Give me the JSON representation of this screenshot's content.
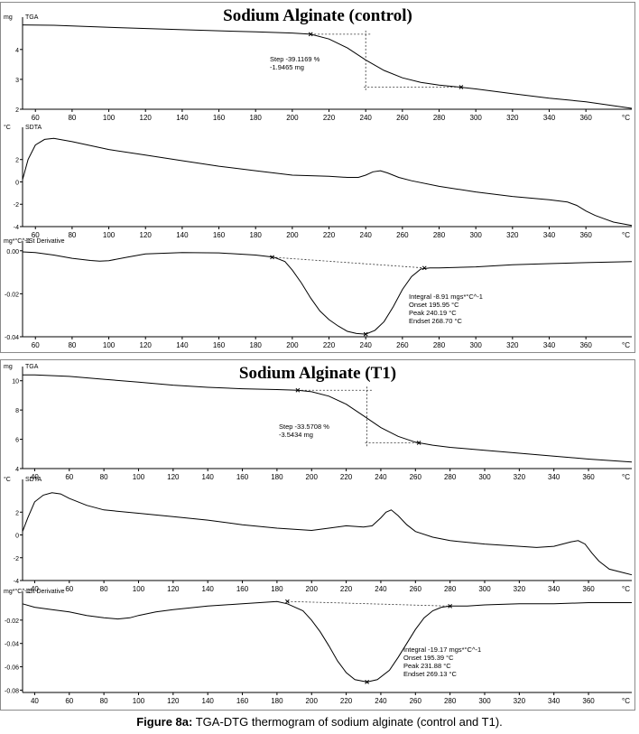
{
  "figure_caption": {
    "label": "Figure 8a:",
    "text": " TGA-DTG thermogram of sodium alginate (control and T1)."
  },
  "chart_data": [
    {
      "type": "line",
      "title": "Sodium Alginate (control)",
      "x_unit_label": "°C",
      "plots": [
        {
          "name": "TGA",
          "unit": "mg",
          "ylim": [
            2.0,
            4.9
          ],
          "xlim": [
            53,
            385
          ],
          "yticks": [
            2,
            3,
            4
          ],
          "ytick_labels": [
            "2",
            "3",
            "4"
          ],
          "xticks": [
            60,
            80,
            100,
            120,
            140,
            160,
            180,
            200,
            220,
            240,
            260,
            280,
            300,
            320,
            340,
            360
          ],
          "series": [
            {
              "x": [
                53,
                70,
                100,
                140,
                180,
                200,
                210,
                220,
                230,
                240,
                250,
                260,
                270,
                280,
                290,
                300,
                320,
                340,
                360,
                385
              ],
              "y": [
                4.82,
                4.81,
                4.74,
                4.66,
                4.59,
                4.55,
                4.51,
                4.35,
                4.05,
                3.65,
                3.3,
                3.05,
                2.9,
                2.81,
                2.75,
                2.68,
                2.52,
                2.37,
                2.25,
                2.03
              ]
            }
          ],
          "markers": [
            {
              "x": 210,
              "y": 4.51
            },
            {
              "x": 292,
              "y": 2.74
            }
          ],
          "step": {
            "x_from": 210,
            "x_to": 292,
            "x_mid": 240,
            "y_from": 4.51,
            "y_to": 2.74
          },
          "annotation": [
            "Step   -39.1169 %",
            "          -1.9465 mg"
          ]
        },
        {
          "name": "SDTA",
          "unit": "°C",
          "ylim": [
            -4,
            4.4
          ],
          "xlim": [
            53,
            385
          ],
          "yticks": [
            -4,
            -2,
            0,
            2
          ],
          "ytick_labels": [
            "-4",
            "-2",
            "0",
            "2"
          ],
          "xticks": [
            60,
            80,
            100,
            120,
            140,
            160,
            180,
            200,
            220,
            240,
            260,
            280,
            300,
            320,
            340,
            360
          ],
          "series": [
            {
              "x": [
                53,
                56,
                60,
                65,
                70,
                80,
                100,
                120,
                140,
                160,
                180,
                200,
                220,
                230,
                236,
                240,
                244,
                248,
                252,
                258,
                265,
                280,
                300,
                320,
                340,
                350,
                355,
                360,
                365,
                370,
                375,
                385
              ],
              "y": [
                0.2,
                2.0,
                3.3,
                3.8,
                3.9,
                3.6,
                2.9,
                2.4,
                1.9,
                1.4,
                1.0,
                0.6,
                0.5,
                0.4,
                0.4,
                0.6,
                0.9,
                1.0,
                0.8,
                0.4,
                0.1,
                -0.4,
                -0.9,
                -1.3,
                -1.6,
                -1.8,
                -2.1,
                -2.6,
                -3.0,
                -3.3,
                -3.6,
                -3.9
              ]
            }
          ]
        },
        {
          "name": "1St Derivative",
          "unit": "mg*°C^-1",
          "ylim": [
            -0.04,
            0.002
          ],
          "xlim": [
            53,
            385
          ],
          "yticks": [
            -0.04,
            -0.02,
            0
          ],
          "ytick_labels": [
            "-0.04",
            "-0.02",
            "0.00"
          ],
          "xticks": [
            60,
            80,
            100,
            120,
            140,
            160,
            180,
            200,
            220,
            240,
            260,
            280,
            300,
            320,
            340,
            360
          ],
          "series": [
            {
              "x": [
                53,
                60,
                70,
                80,
                90,
                95,
                100,
                110,
                120,
                140,
                160,
                180,
                190,
                196,
                200,
                205,
                210,
                215,
                220,
                225,
                230,
                235,
                240,
                245,
                250,
                255,
                260,
                265,
                270,
                275,
                280,
                300,
                320,
                340,
                360,
                385
              ],
              "y": [
                -0.0005,
                -0.0008,
                -0.002,
                -0.0035,
                -0.0045,
                -0.0048,
                -0.0046,
                -0.003,
                -0.0015,
                -0.0008,
                -0.001,
                -0.002,
                -0.003,
                -0.005,
                -0.009,
                -0.015,
                -0.022,
                -0.028,
                -0.032,
                -0.035,
                -0.0375,
                -0.0385,
                -0.0388,
                -0.037,
                -0.033,
                -0.026,
                -0.018,
                -0.012,
                -0.0085,
                -0.008,
                -0.008,
                -0.0075,
                -0.0065,
                -0.006,
                -0.0055,
                -0.005
              ]
            }
          ],
          "markers": [
            {
              "x": 189,
              "y": -0.003
            },
            {
              "x": 272,
              "y": -0.008
            },
            {
              "x": 240,
              "y": -0.0388
            }
          ],
          "baseline": {
            "x": [
              189,
              272
            ],
            "y": [
              -0.003,
              -0.008
            ]
          },
          "annotation": [
            "Integral   -8.91 mgs*°C^-1",
            "Onset       195.95 °C",
            "Peak         240.19 °C",
            "Endset      268.70 °C"
          ]
        }
      ]
    },
    {
      "type": "line",
      "title": "Sodium Alginate (T1)",
      "x_unit_label": "°C",
      "plots": [
        {
          "name": "TGA",
          "unit": "mg",
          "ylim": [
            4,
            10.6
          ],
          "xlim": [
            33,
            385
          ],
          "yticks": [
            4,
            6,
            8,
            10
          ],
          "ytick_labels": [
            "4",
            "6",
            "8",
            "10"
          ],
          "xticks": [
            40,
            60,
            80,
            100,
            120,
            140,
            160,
            180,
            200,
            220,
            240,
            260,
            280,
            300,
            320,
            340,
            360
          ],
          "series": [
            {
              "x": [
                33,
                40,
                60,
                80,
                100,
                120,
                140,
                160,
                180,
                192,
                200,
                210,
                220,
                230,
                240,
                250,
                260,
                270,
                280,
                300,
                320,
                340,
                360,
                385
              ],
              "y": [
                10.4,
                10.4,
                10.3,
                10.1,
                9.9,
                9.7,
                9.55,
                9.45,
                9.4,
                9.35,
                9.25,
                8.95,
                8.4,
                7.6,
                6.8,
                6.2,
                5.8,
                5.6,
                5.45,
                5.25,
                5.05,
                4.85,
                4.65,
                4.45
              ]
            }
          ],
          "markers": [
            {
              "x": 192,
              "y": 9.35
            },
            {
              "x": 262,
              "y": 5.76
            }
          ],
          "step": {
            "x_from": 192,
            "x_to": 262,
            "x_mid": 232,
            "y_from": 9.35,
            "y_to": 5.76
          },
          "annotation": [
            "Step   -33.5708 %",
            "          -3.5434 mg"
          ]
        },
        {
          "name": "SDTA",
          "unit": "°C",
          "ylim": [
            -4,
            4.4
          ],
          "xlim": [
            33,
            385
          ],
          "yticks": [
            -4,
            -2,
            0,
            2
          ],
          "ytick_labels": [
            "-4",
            "-2",
            "0",
            "2"
          ],
          "xticks": [
            40,
            60,
            80,
            100,
            120,
            140,
            160,
            180,
            200,
            220,
            240,
            260,
            280,
            300,
            320,
            340,
            360
          ],
          "series": [
            {
              "x": [
                33,
                36,
                40,
                45,
                50,
                55,
                60,
                70,
                80,
                100,
                120,
                140,
                160,
                180,
                200,
                210,
                220,
                230,
                235,
                240,
                243,
                246,
                250,
                255,
                260,
                270,
                280,
                300,
                320,
                330,
                340,
                345,
                350,
                354,
                358,
                362,
                366,
                372,
                385
              ],
              "y": [
                0.3,
                1.5,
                2.9,
                3.5,
                3.7,
                3.6,
                3.2,
                2.6,
                2.2,
                1.9,
                1.6,
                1.3,
                0.9,
                0.6,
                0.4,
                0.6,
                0.8,
                0.7,
                0.8,
                1.5,
                2.0,
                2.2,
                1.7,
                0.9,
                0.3,
                -0.2,
                -0.5,
                -0.8,
                -1.0,
                -1.1,
                -1.0,
                -0.8,
                -0.6,
                -0.5,
                -0.8,
                -1.6,
                -2.3,
                -3.0,
                -3.5
              ]
            }
          ]
        },
        {
          "name": "1St Derivative",
          "unit": "mg*°C^-1",
          "ylim": [
            -0.082,
            0
          ],
          "xlim": [
            33,
            385
          ],
          "yticks": [
            -0.08,
            -0.06,
            -0.04,
            -0.02
          ],
          "ytick_labels": [
            "-0.08",
            "-0.06",
            "-0.04",
            "-0.02"
          ],
          "xticks": [
            40,
            60,
            80,
            100,
            120,
            140,
            160,
            180,
            200,
            220,
            240,
            260,
            280,
            300,
            320,
            340,
            360
          ],
          "series": [
            {
              "x": [
                33,
                40,
                50,
                60,
                70,
                80,
                88,
                95,
                100,
                110,
                120,
                140,
                160,
                170,
                180,
                186,
                195,
                200,
                205,
                210,
                215,
                220,
                225,
                232,
                238,
                245,
                250,
                255,
                260,
                265,
                270,
                275,
                280,
                290,
                300,
                320,
                340,
                360,
                385
              ],
              "y": [
                -0.006,
                -0.009,
                -0.011,
                -0.013,
                -0.016,
                -0.018,
                -0.019,
                -0.018,
                -0.016,
                -0.013,
                -0.011,
                -0.008,
                -0.006,
                -0.005,
                -0.004,
                -0.006,
                -0.012,
                -0.02,
                -0.03,
                -0.042,
                -0.055,
                -0.065,
                -0.071,
                -0.073,
                -0.071,
                -0.063,
                -0.052,
                -0.04,
                -0.028,
                -0.018,
                -0.012,
                -0.009,
                -0.008,
                -0.008,
                -0.007,
                -0.006,
                -0.006,
                -0.005,
                -0.005
              ]
            }
          ],
          "markers": [
            {
              "x": 186,
              "y": -0.004
            },
            {
              "x": 280,
              "y": -0.008
            },
            {
              "x": 232,
              "y": -0.073
            }
          ],
          "baseline": {
            "x": [
              186,
              280
            ],
            "y": [
              -0.004,
              -0.008
            ]
          },
          "annotation": [
            "Integral   -19.17 mgs*°C^-1",
            "Onset       195.39 °C",
            "Peak         231.88 °C",
            "Endset      269.13 °C"
          ]
        }
      ]
    }
  ]
}
